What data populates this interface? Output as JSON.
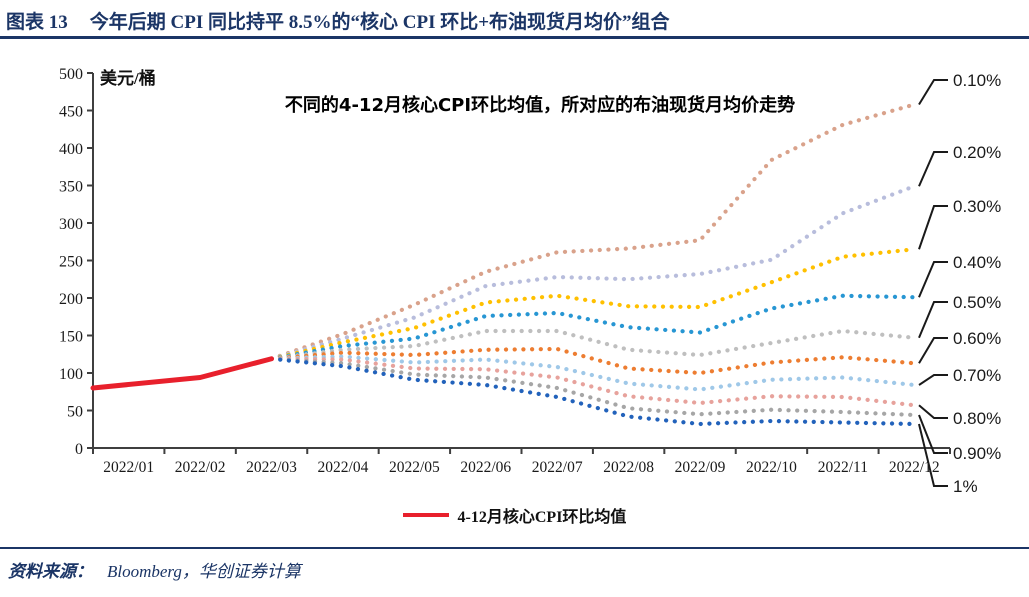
{
  "figure": {
    "label": "图表 13",
    "title": "今年后期 CPI 同比持平 8.5%的“核心 CPI 环比+布油现货月均价”组合"
  },
  "source": {
    "prefix": "资料来源：",
    "text": "Bloomberg，华创证券计算"
  },
  "chart_data": {
    "type": "line",
    "annotation": "不同的4-12月核心CPI环比均值，所对应的布油现货月均价走势",
    "unit_label": "美元/桶",
    "x_categories": [
      "2022/01",
      "2022/02",
      "2022/03",
      "2022/04",
      "2022/05",
      "2022/06",
      "2022/07",
      "2022/08",
      "2022/09",
      "2022/10",
      "2022/11",
      "2022/12"
    ],
    "ylim": [
      0,
      500
    ],
    "ytick_step": 50,
    "grid": "off",
    "legend_position": "bottom-center",
    "axis_color": "#3f3f3f",
    "actual_series": {
      "name": "4-12月核心CPI环比均值",
      "color": "#e8202c",
      "months": [
        "2022/01",
        "2022/02",
        "2022/03"
      ],
      "values": [
        80,
        94,
        119
      ]
    },
    "scenario_start_month": "2022/03",
    "scenario_series": [
      {
        "label": "0.10%",
        "color": "#d9a28b",
        "values": [
          119,
          152,
          191,
          235,
          261,
          266,
          277,
          384,
          431,
          458
        ]
      },
      {
        "label": "0.20%",
        "color": "#b8bddc",
        "values": [
          119,
          146,
          174,
          216,
          228,
          225,
          232,
          251,
          313,
          349
        ]
      },
      {
        "label": "0.30%",
        "color": "#ffc000",
        "values": [
          119,
          141,
          160,
          194,
          203,
          189,
          188,
          221,
          255,
          265
        ]
      },
      {
        "label": "0.40%",
        "color": "#2796d3",
        "values": [
          119,
          136,
          146,
          176,
          180,
          161,
          154,
          186,
          203,
          201
        ]
      },
      {
        "label": "0.50%",
        "color": "#bfbfbf",
        "values": [
          119,
          131,
          136,
          156,
          156,
          131,
          124,
          140,
          156,
          147
        ]
      },
      {
        "label": "0.60%",
        "color": "#ed7d31",
        "values": [
          119,
          127,
          124,
          131,
          132,
          106,
          100,
          114,
          121,
          113
        ]
      },
      {
        "label": "0.70%",
        "color": "#9fc8e8",
        "values": [
          119,
          122,
          114,
          118,
          108,
          86,
          78,
          91,
          94,
          84
        ]
      },
      {
        "label": "0.80%",
        "color": "#e7a29c",
        "values": [
          119,
          118,
          106,
          105,
          94,
          69,
          60,
          69,
          68,
          57
        ]
      },
      {
        "label": "0.90%",
        "color": "#a6a6a6",
        "values": [
          119,
          113,
          98,
          94,
          80,
          53,
          45,
          51,
          48,
          44
        ]
      },
      {
        "label": "1%",
        "color": "#2262bb",
        "values": [
          119,
          109,
          91,
          84,
          68,
          42,
          32,
          36,
          34,
          32
        ]
      }
    ]
  }
}
